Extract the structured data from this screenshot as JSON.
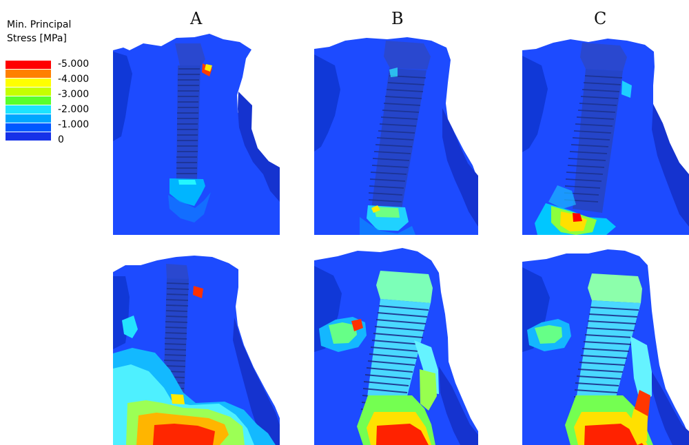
{
  "legend": {
    "title_line1": "Min. Principal",
    "title_line2": "Stress [MPa]",
    "labels": [
      "-5.000",
      "-4.000",
      "-3.000",
      "-2.000",
      "-1.000",
      "0"
    ],
    "colors": [
      "#ff0000",
      "#ff8000",
      "#ffff00",
      "#c6ff00",
      "#59ff2c",
      "#1de3ff",
      "#00a6ff",
      "#0058ff",
      "#1631e8"
    ]
  },
  "columns": {
    "a": "A",
    "b": "B",
    "c": "C"
  },
  "panels": {
    "A_top": "A top",
    "B_top": "B top",
    "C_top": "C top",
    "A_bottom": "A bottom",
    "B_bottom": "B bottom",
    "C_bottom": "C bottom"
  }
}
